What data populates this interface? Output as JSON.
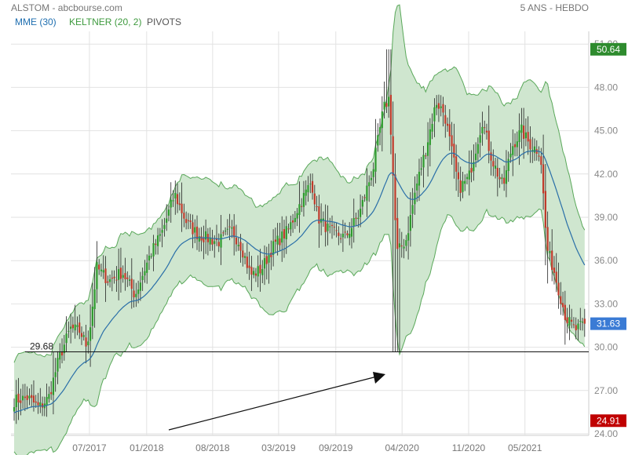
{
  "header": {
    "title": "ALSTOM - abcbourse.com",
    "period": "5 ANS - HEBDO"
  },
  "indicators": [
    {
      "label": "MME (30)",
      "color": "#1f6fb0"
    },
    {
      "label": "KELTNER (20, 2)",
      "color": "#3e9a3e"
    },
    {
      "label": "PIVOTS",
      "color": "#555555"
    }
  ],
  "badges": {
    "high": {
      "value": "50.64",
      "color": "#2e8b2e"
    },
    "current": {
      "value": "31.63",
      "color": "#3a7bd5"
    },
    "low": {
      "value": "24.91",
      "color": "#c00000"
    }
  },
  "pivot": {
    "label": "29.68",
    "value": 29.68
  },
  "colors": {
    "up": "#2e9a2e",
    "down": "#c0392b",
    "band_fill": "#cfe6cf",
    "band_line": "#5aa85a",
    "ema": "#2a6fa8",
    "grid": "#e2e2e2"
  },
  "chart_data": {
    "type": "candlestick",
    "interval": "weekly",
    "ylim": [
      24,
      51.5
    ],
    "y_ticks": [
      "24.00",
      "27.00",
      "30.00",
      "33.00",
      "36.00",
      "39.00",
      "42.00",
      "45.00",
      "48.00",
      "51.00"
    ],
    "x_ticks": [
      "07/2017",
      "01/2018",
      "08/2018",
      "03/2019",
      "09/2019",
      "04/2020",
      "11/2020",
      "05/2021"
    ],
    "x_tick_dates": [
      "2017-07-01",
      "2018-01-01",
      "2018-08-01",
      "2019-03-01",
      "2019-09-01",
      "2020-04-01",
      "2020-11-01",
      "2021-05-01"
    ],
    "date_range": [
      "2016-11-01",
      "2021-11-12"
    ],
    "close_path": [
      [
        "2016-11-01",
        26.3
      ],
      [
        "2016-12-15",
        26.5
      ],
      [
        "2017-01-20",
        25.8
      ],
      [
        "2017-02-20",
        26.5
      ],
      [
        "2017-03-25",
        29.2
      ],
      [
        "2017-05-01",
        31.3
      ],
      [
        "2017-06-01",
        31.1
      ],
      [
        "2017-06-20",
        30.2
      ],
      [
        "2017-07-01",
        31.0
      ],
      [
        "2017-07-25",
        35.5
      ],
      [
        "2017-09-01",
        34.6
      ],
      [
        "2017-10-15",
        35.2
      ],
      [
        "2017-11-25",
        33.6
      ],
      [
        "2018-01-10",
        36.3
      ],
      [
        "2018-02-20",
        38.0
      ],
      [
        "2018-04-01",
        40.6
      ],
      [
        "2018-05-10",
        38.6
      ],
      [
        "2018-06-15",
        37.8
      ],
      [
        "2018-07-20",
        37.5
      ],
      [
        "2018-08-20",
        37.3
      ],
      [
        "2018-10-01",
        38.1
      ],
      [
        "2018-11-01",
        37.0
      ],
      [
        "2018-12-01",
        35.0
      ],
      [
        "2019-01-05",
        35.4
      ],
      [
        "2019-02-15",
        37.1
      ],
      [
        "2019-04-01",
        38.1
      ],
      [
        "2019-05-01",
        39.6
      ],
      [
        "2019-06-15",
        41.5
      ],
      [
        "2019-07-05",
        39.0
      ],
      [
        "2019-08-15",
        38.0
      ],
      [
        "2019-10-01",
        37.6
      ],
      [
        "2019-11-15",
        39.2
      ],
      [
        "2019-12-31",
        42.5
      ],
      [
        "2020-02-01",
        46.5
      ],
      [
        "2020-02-20",
        47.3
      ],
      [
        "2020-03-15",
        36.5
      ],
      [
        "2020-04-15",
        37.5
      ],
      [
        "2020-05-15",
        41.0
      ],
      [
        "2020-06-15",
        43.6
      ],
      [
        "2020-07-20",
        47.0
      ],
      [
        "2020-08-15",
        46.2
      ],
      [
        "2020-10-01",
        41.0
      ],
      [
        "2020-11-01",
        41.7
      ],
      [
        "2020-12-15",
        45.7
      ],
      [
        "2021-01-15",
        43.0
      ],
      [
        "2021-02-20",
        41.1
      ],
      [
        "2021-03-20",
        43.9
      ],
      [
        "2021-04-20",
        45.0
      ],
      [
        "2021-05-15",
        44.1
      ],
      [
        "2021-06-20",
        43.5
      ],
      [
        "2021-07-10",
        36.9
      ],
      [
        "2021-08-01",
        35.4
      ],
      [
        "2021-09-10",
        32.0
      ],
      [
        "2021-10-10",
        31.2
      ],
      [
        "2021-11-12",
        31.63
      ]
    ],
    "overlays": [
      "EMA 30",
      "Keltner Channel (20, 2)",
      "Pivot 29.68"
    ]
  }
}
